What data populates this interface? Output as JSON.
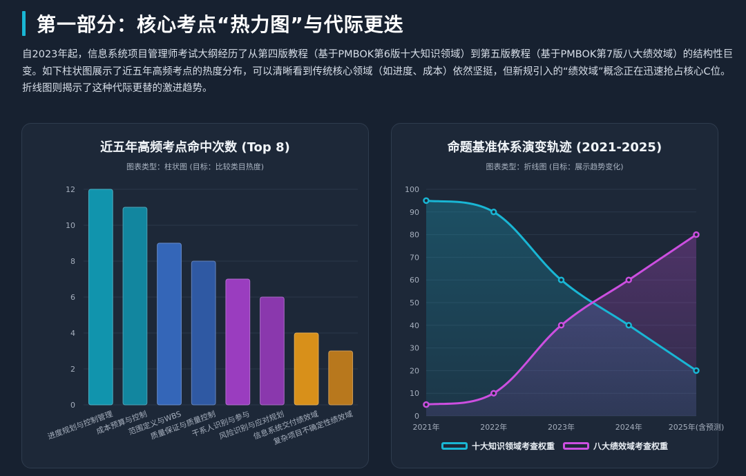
{
  "header": {
    "title": "第一部分：核心考点“热力图”与代际更迭",
    "intro": "自2023年起，信息系统项目管理师考试大纲经历了从第四版教程（基于PMBOK第6版十大知识领域）到第五版教程（基于PMBOK第7版八大绩效域）的结构性巨变。如下柱状图展示了近五年高频考点的热度分布，可以清晰看到传统核心领域（如进度、成本）依然坚挺，但新规引入的“绩效域”概念正在迅速抢占核心C位。折线图则揭示了这种代际更替的激进趋势。"
  },
  "colors": {
    "accent": "#19b6d4",
    "teal": "#1a9cb8",
    "blue": "#3a6fc4",
    "purple": "#9a3fc4",
    "orange": "#e0951d",
    "pink": "#cc4fe0"
  },
  "chart_data": [
    {
      "type": "bar",
      "title": "近五年高频考点命中次数 (Top 8)",
      "subtitle": "图表类型：柱状图 (目标：比较类目热度)",
      "categories": [
        "进度规划与控制管理",
        "成本预算与控制",
        "范围定义与WBS",
        "质量保证与质量控制",
        "干系人识别与参与",
        "风险识别与应对规划",
        "信息系统交付绩效域",
        "复杂项目不确定性绩效域"
      ],
      "values": [
        12,
        11,
        9,
        8,
        7,
        6,
        4,
        3
      ],
      "bar_colors": [
        "#1194ad",
        "#12869f",
        "#3466b8",
        "#2f59a3",
        "#9a3dbf",
        "#8a38ad",
        "#d8901a",
        "#b8781d"
      ],
      "ylim": [
        0,
        12
      ],
      "yticks": [
        0,
        2,
        4,
        6,
        8,
        10,
        12
      ],
      "grid": true
    },
    {
      "type": "line",
      "title": "命题基准体系演变轨迹 (2021-2025)",
      "subtitle": "图表类型：折线图 (目标：展示趋势变化)",
      "x": [
        "2021年",
        "2022年",
        "2023年",
        "2024年",
        "2025年(含预测)"
      ],
      "series": [
        {
          "name": "十大知识领域考查权重",
          "values": [
            95,
            90,
            60,
            40,
            20
          ],
          "color": "#19b6d4"
        },
        {
          "name": "八大绩效域考查权重",
          "values": [
            5,
            10,
            40,
            60,
            80
          ],
          "color": "#cc4fe0"
        }
      ],
      "ylim": [
        0,
        100
      ],
      "yticks": [
        0,
        10,
        20,
        30,
        40,
        50,
        60,
        70,
        80,
        90,
        100
      ],
      "legend": "bottom",
      "grid": true
    }
  ]
}
